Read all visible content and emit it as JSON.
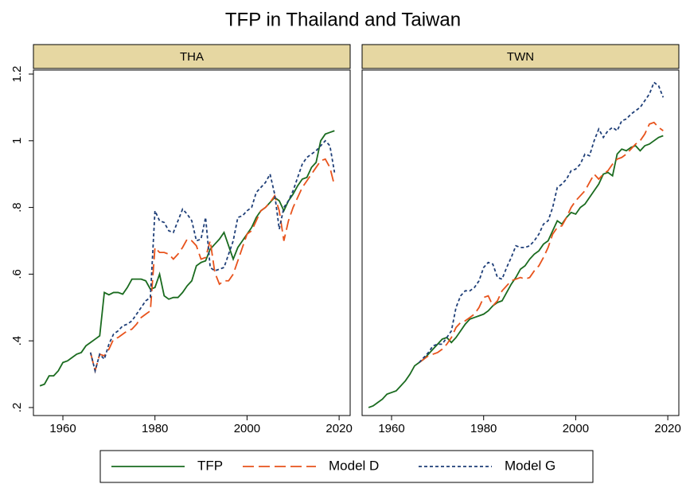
{
  "chart_data": {
    "type": "line",
    "title": "TFP in Thailand and Taiwan",
    "x": [
      1955,
      1956,
      1957,
      1958,
      1959,
      1960,
      1961,
      1962,
      1963,
      1964,
      1965,
      1966,
      1967,
      1968,
      1969,
      1970,
      1971,
      1972,
      1973,
      1974,
      1975,
      1976,
      1977,
      1978,
      1979,
      1980,
      1981,
      1982,
      1983,
      1984,
      1985,
      1986,
      1987,
      1988,
      1989,
      1990,
      1991,
      1992,
      1993,
      1994,
      1995,
      1996,
      1997,
      1998,
      1999,
      2000,
      2001,
      2002,
      2003,
      2004,
      2005,
      2006,
      2007,
      2008,
      2009,
      2010,
      2011,
      2012,
      2013,
      2014,
      2015,
      2016,
      2017,
      2018,
      2019
    ],
    "xlim": [
      1953.6,
      2022.4
    ],
    "xticks": [
      1960,
      1980,
      2000,
      2020
    ],
    "ylim": [
      0.176,
      1.212
    ],
    "yticks": [
      {
        "value": 0.2,
        "label": ".2"
      },
      {
        "value": 0.4,
        "label": ".4"
      },
      {
        "value": 0.6,
        "label": ".6"
      },
      {
        "value": 0.8,
        "label": ".8"
      },
      1,
      {
        "value": 1.2,
        "label": "1.2"
      }
    ],
    "legend": "bottom",
    "series": [
      {
        "name": "TFP",
        "color": "#1a6b1f",
        "dash": "solid"
      },
      {
        "name": "Model D",
        "color": "#e8531c",
        "dash": "long"
      },
      {
        "name": "Model G",
        "color": "#1f3f78",
        "dash": "short"
      }
    ],
    "panels": [
      {
        "title": "THA",
        "series": [
          {
            "values": [
              0.265,
              0.27,
              0.295,
              0.295,
              0.31,
              0.335,
              0.34,
              0.35,
              0.36,
              0.365,
              0.385,
              0.395,
              0.405,
              0.415,
              0.545,
              0.538,
              0.545,
              0.545,
              0.54,
              0.56,
              0.585,
              0.585,
              0.585,
              0.58,
              0.555,
              0.56,
              0.6,
              0.535,
              0.525,
              0.53,
              0.53,
              0.545,
              0.565,
              0.58,
              0.625,
              0.635,
              0.64,
              0.675,
              0.69,
              0.705,
              0.725,
              0.685,
              0.645,
              0.68,
              0.7,
              0.72,
              0.74,
              0.77,
              0.79,
              0.8,
              0.815,
              0.83,
              0.82,
              0.79,
              0.82,
              0.84,
              0.865,
              0.885,
              0.89,
              0.92,
              0.935,
              1.0,
              1.02,
              1.025,
              1.03
            ]
          },
          {
            "values": [
              null,
              null,
              null,
              null,
              null,
              null,
              null,
              null,
              null,
              null,
              null,
              0.365,
              0.31,
              0.36,
              0.355,
              0.375,
              0.405,
              0.41,
              0.42,
              0.43,
              0.435,
              0.45,
              0.47,
              0.48,
              0.49,
              0.68,
              0.665,
              0.665,
              0.66,
              0.645,
              0.66,
              0.68,
              0.705,
              0.7,
              0.685,
              0.645,
              0.65,
              0.7,
              0.605,
              0.57,
              0.58,
              0.58,
              0.6,
              0.64,
              0.68,
              0.72,
              0.73,
              0.76,
              0.79,
              0.8,
              0.815,
              0.835,
              0.79,
              0.7,
              0.76,
              0.8,
              0.83,
              0.86,
              0.88,
              0.9,
              0.92,
              0.94,
              0.945,
              0.92,
              0.865
            ]
          },
          {
            "values": [
              null,
              null,
              null,
              null,
              null,
              null,
              null,
              null,
              null,
              null,
              null,
              0.365,
              0.31,
              0.36,
              0.345,
              0.39,
              0.42,
              0.43,
              0.445,
              0.45,
              0.46,
              0.48,
              0.5,
              0.52,
              0.53,
              0.79,
              0.76,
              0.755,
              0.73,
              0.725,
              0.76,
              0.795,
              0.78,
              0.76,
              0.7,
              0.705,
              0.77,
              0.62,
              0.61,
              0.615,
              0.62,
              0.66,
              0.7,
              0.77,
              0.775,
              0.79,
              0.8,
              0.845,
              0.86,
              0.875,
              0.9,
              0.84,
              0.735,
              0.8,
              0.82,
              0.85,
              0.89,
              0.93,
              0.95,
              0.96,
              0.97,
              0.985,
              1.0,
              0.985,
              0.905
            ]
          }
        ]
      },
      {
        "title": "TWN",
        "series": [
          {
            "values": [
              0.2,
              0.205,
              0.215,
              0.225,
              0.24,
              0.245,
              0.25,
              0.265,
              0.28,
              0.3,
              0.325,
              0.335,
              0.345,
              0.36,
              0.375,
              0.39,
              0.405,
              0.41,
              0.395,
              0.41,
              0.43,
              0.45,
              0.465,
              0.47,
              0.475,
              0.48,
              0.49,
              0.505,
              0.515,
              0.52,
              0.545,
              0.57,
              0.59,
              0.615,
              0.625,
              0.645,
              0.66,
              0.67,
              0.69,
              0.7,
              0.73,
              0.76,
              0.75,
              0.77,
              0.785,
              0.78,
              0.8,
              0.81,
              0.83,
              0.85,
              0.87,
              0.9,
              0.905,
              0.895,
              0.96,
              0.975,
              0.97,
              0.98,
              0.985,
              0.97,
              0.985,
              0.99,
              1.0,
              1.01,
              1.015
            ]
          },
          {
            "values": [
              null,
              null,
              null,
              null,
              null,
              null,
              null,
              null,
              null,
              null,
              null,
              0.335,
              0.345,
              0.355,
              0.36,
              0.365,
              0.375,
              0.39,
              0.41,
              0.44,
              0.455,
              0.46,
              0.47,
              0.48,
              0.5,
              0.53,
              0.535,
              0.505,
              0.52,
              0.55,
              0.565,
              0.58,
              0.585,
              0.59,
              0.585,
              0.59,
              0.61,
              0.625,
              0.65,
              0.68,
              0.72,
              0.74,
              0.745,
              0.77,
              0.8,
              0.82,
              0.835,
              0.85,
              0.875,
              0.9,
              0.885,
              0.9,
              0.91,
              0.93,
              0.945,
              0.95,
              0.96,
              0.975,
              0.99,
              1.0,
              1.02,
              1.05,
              1.055,
              1.04,
              1.03
            ]
          },
          {
            "values": [
              null,
              null,
              null,
              null,
              null,
              null,
              null,
              null,
              null,
              null,
              null,
              0.335,
              0.35,
              0.365,
              0.385,
              0.39,
              0.39,
              0.41,
              0.43,
              0.5,
              0.535,
              0.55,
              0.55,
              0.56,
              0.58,
              0.62,
              0.635,
              0.63,
              0.59,
              0.585,
              0.62,
              0.65,
              0.685,
              0.68,
              0.68,
              0.685,
              0.7,
              0.72,
              0.75,
              0.76,
              0.8,
              0.86,
              0.87,
              0.885,
              0.91,
              0.915,
              0.93,
              0.96,
              0.955,
              1.0,
              1.035,
              1.01,
              1.03,
              1.04,
              1.03,
              1.06,
              1.065,
              1.08,
              1.09,
              1.1,
              1.12,
              1.14,
              1.175,
              1.165,
              1.13
            ]
          }
        ]
      }
    ]
  }
}
